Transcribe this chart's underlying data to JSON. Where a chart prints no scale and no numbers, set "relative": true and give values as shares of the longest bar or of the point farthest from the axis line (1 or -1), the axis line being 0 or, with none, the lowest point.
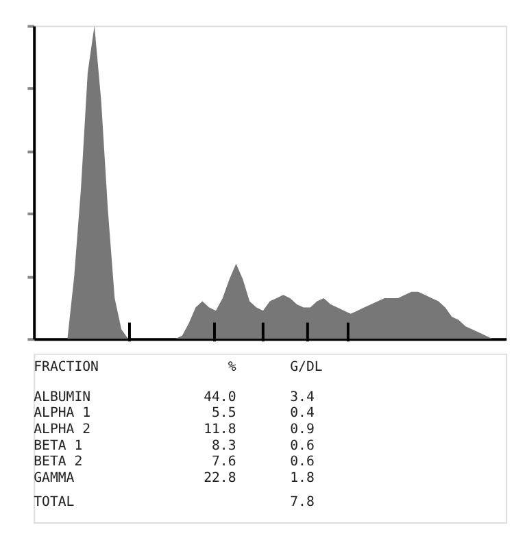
{
  "chart_data": {
    "type": "area",
    "relative": true,
    "grid": false,
    "tick_labels": false,
    "color": "#777777",
    "categories": [
      null,
      null,
      null,
      null,
      null,
      null,
      null,
      null,
      null,
      null,
      null,
      null,
      null,
      null,
      null,
      null,
      null,
      null,
      null,
      null,
      null,
      null,
      null,
      null,
      null,
      null,
      null,
      null,
      null,
      null,
      null,
      null,
      null,
      null,
      null,
      null,
      null,
      null,
      null,
      null,
      null,
      null,
      null,
      null,
      null,
      null,
      null,
      null,
      null,
      null,
      null,
      null,
      null,
      null,
      null,
      null,
      null,
      null,
      null,
      null,
      null,
      null,
      null,
      null,
      null,
      null,
      null,
      null,
      null,
      null,
      null
    ],
    "values": [
      0,
      0,
      0,
      0,
      0,
      0,
      0.2,
      0.48,
      0.85,
      1.0,
      0.76,
      0.41,
      0.13,
      0.03,
      0,
      0,
      0,
      0,
      0,
      0,
      0,
      0,
      0.01,
      0.05,
      0.1,
      0.12,
      0.1,
      0.09,
      0.13,
      0.19,
      0.24,
      0.19,
      0.12,
      0.1,
      0.09,
      0.12,
      0.13,
      0.14,
      0.13,
      0.11,
      0.1,
      0.1,
      0.12,
      0.13,
      0.11,
      0.1,
      0.09,
      0.08,
      0.09,
      0.1,
      0.11,
      0.12,
      0.13,
      0.13,
      0.13,
      0.14,
      0.15,
      0.15,
      0.14,
      0.13,
      0.12,
      0.1,
      0.07,
      0.06,
      0.04,
      0.03,
      0.02,
      0.01,
      0,
      0,
      0
    ],
    "annotations": [
      "FRACTION",
      "%",
      "G/DL",
      "ALBUMIN",
      "44.0",
      "3.4",
      "ALPHA 1",
      "5.5",
      "0.4",
      "ALPHA 2",
      "11.8",
      "0.9",
      "BETA 1",
      "8.3",
      "0.6",
      "BETA 2",
      "7.6",
      "0.6",
      "GAMMA",
      "22.8",
      "1.8",
      "TOTAL",
      "7.8"
    ]
  }
}
